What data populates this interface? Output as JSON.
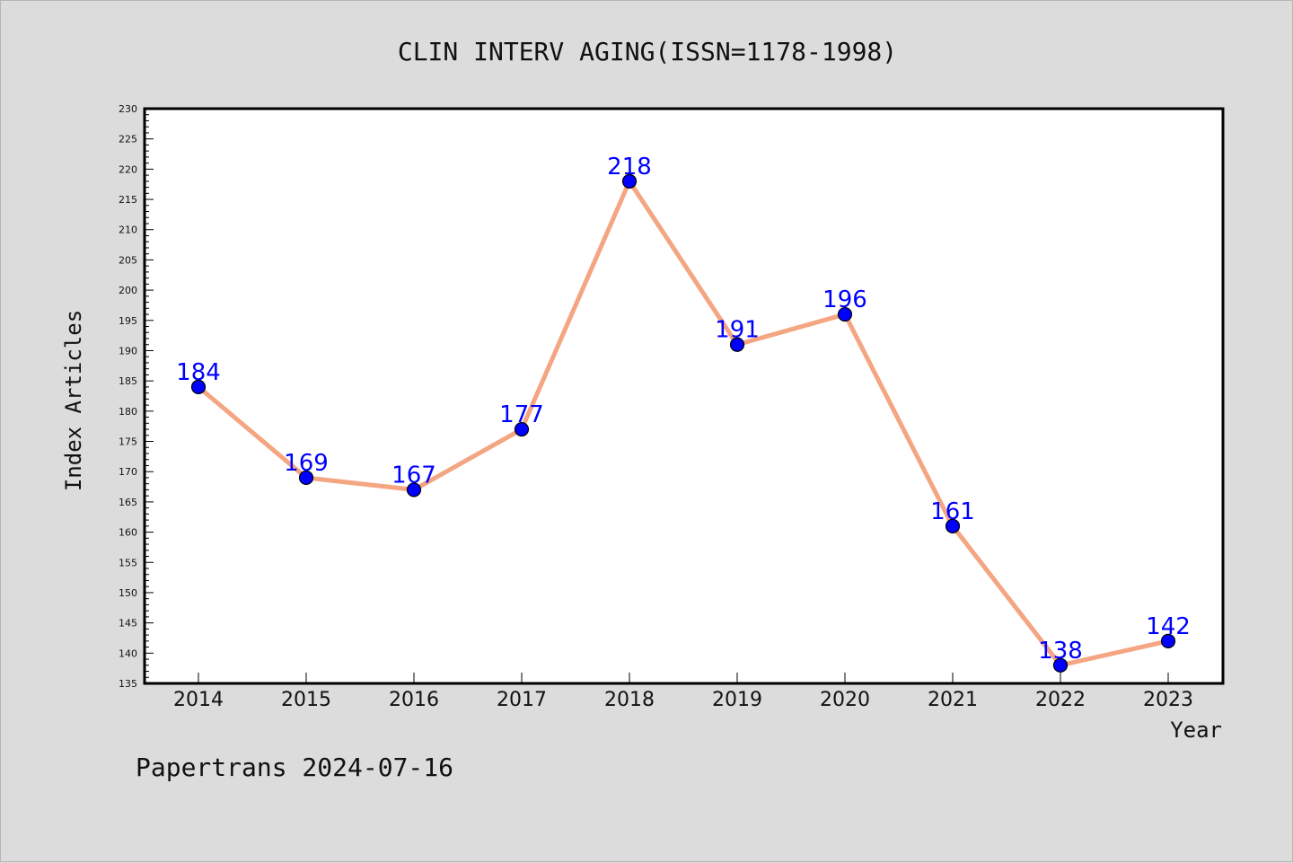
{
  "chart_data": {
    "type": "line",
    "title": "CLIN INTERV AGING(ISSN=1178-1998)",
    "xlabel": "Year",
    "ylabel": "Index Articles",
    "categories": [
      "2014",
      "2015",
      "2016",
      "2017",
      "2018",
      "2019",
      "2020",
      "2021",
      "2022",
      "2023"
    ],
    "values": [
      184,
      169,
      167,
      177,
      218,
      191,
      196,
      161,
      138,
      142
    ],
    "ylim": [
      135,
      230
    ],
    "ytick_step": 5,
    "grid": false,
    "legend": "none",
    "colors": {
      "line": "#f4a582",
      "marker": "#0000ff",
      "data_label": "#0000ff",
      "background": "#dcdcdc",
      "plot_background": "#ffffff"
    }
  },
  "footer": "Papertrans 2024-07-16"
}
